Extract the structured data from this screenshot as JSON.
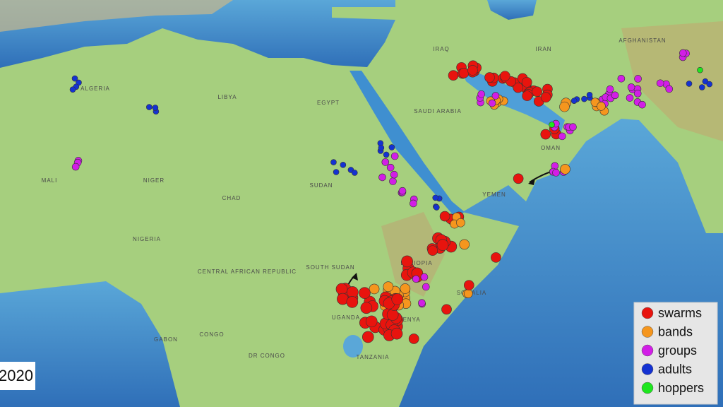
{
  "map": {
    "year": "2020",
    "legend": [
      {
        "label": "swarms",
        "color": "#e8140e"
      },
      {
        "label": "bands",
        "color": "#f5961e"
      },
      {
        "label": "groups",
        "color": "#d21ee6"
      },
      {
        "label": "adults",
        "color": "#1432d2"
      },
      {
        "label": "hoppers",
        "color": "#1ee61e"
      }
    ],
    "places": [
      "ALGERIA",
      "LIBYA",
      "EGYPT",
      "SAUDI ARABIA",
      "IRAQ",
      "IRAN",
      "AFGHANISTAN",
      "MALI",
      "NIGER",
      "CHAD",
      "SUDAN",
      "SOUTH SUDAN",
      "ETHIOPIA",
      "SOMALIA",
      "NIGERIA",
      "CENTRAL AFRICAN REPUBLIC",
      "DR CONGO",
      "CONGO",
      "GABON",
      "TANZANIA",
      "OMAN",
      "YEMEN",
      "KENYA",
      "UGANDA"
    ]
  }
}
